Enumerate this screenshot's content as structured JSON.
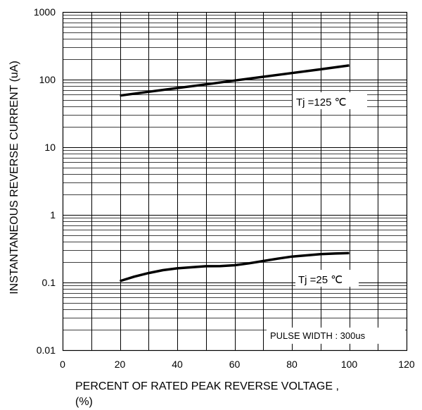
{
  "chart_data": {
    "type": "line",
    "title": "",
    "xlabel_line1": "PERCENT OF RATED PEAK REVERSE VOLTAGE ,",
    "xlabel_line2": "(%)",
    "ylabel": "INSTANTANEOUS REVERSE  CURRENT  (uA)",
    "xlim": [
      0,
      120
    ],
    "ylim": [
      0.01,
      1000
    ],
    "y_scale": "log",
    "grid": true,
    "x_ticks": [
      0,
      20,
      40,
      60,
      80,
      100,
      120
    ],
    "x_tick_labels": [
      "0",
      "20",
      "40",
      "60",
      "80",
      "100",
      "120"
    ],
    "y_ticks": [
      0.01,
      0.1,
      1,
      10,
      100,
      1000
    ],
    "y_tick_labels": [
      "0.01",
      "0.1",
      "1",
      "10",
      "100",
      "1000"
    ],
    "series": [
      {
        "name": "Tj =125 ℃",
        "x": [
          20,
          30,
          40,
          50,
          60,
          70,
          80,
          90,
          100
        ],
        "y": [
          58,
          66,
          75,
          85,
          97,
          110,
          125,
          142,
          162
        ]
      },
      {
        "name": "Tj =25 ℃",
        "x": [
          20,
          25,
          30,
          35,
          40,
          45,
          50,
          55,
          60,
          65,
          70,
          75,
          80,
          85,
          90,
          95,
          100
        ],
        "y": [
          0.105,
          0.122,
          0.138,
          0.152,
          0.162,
          0.168,
          0.174,
          0.175,
          0.18,
          0.192,
          0.208,
          0.225,
          0.242,
          0.252,
          0.262,
          0.268,
          0.272
        ]
      }
    ],
    "annotations": {
      "series_125_label": "Tj =125 ℃",
      "series_25_label": "Tj =25 ℃",
      "pulse_note": "PULSE WIDTH : 300us"
    }
  }
}
